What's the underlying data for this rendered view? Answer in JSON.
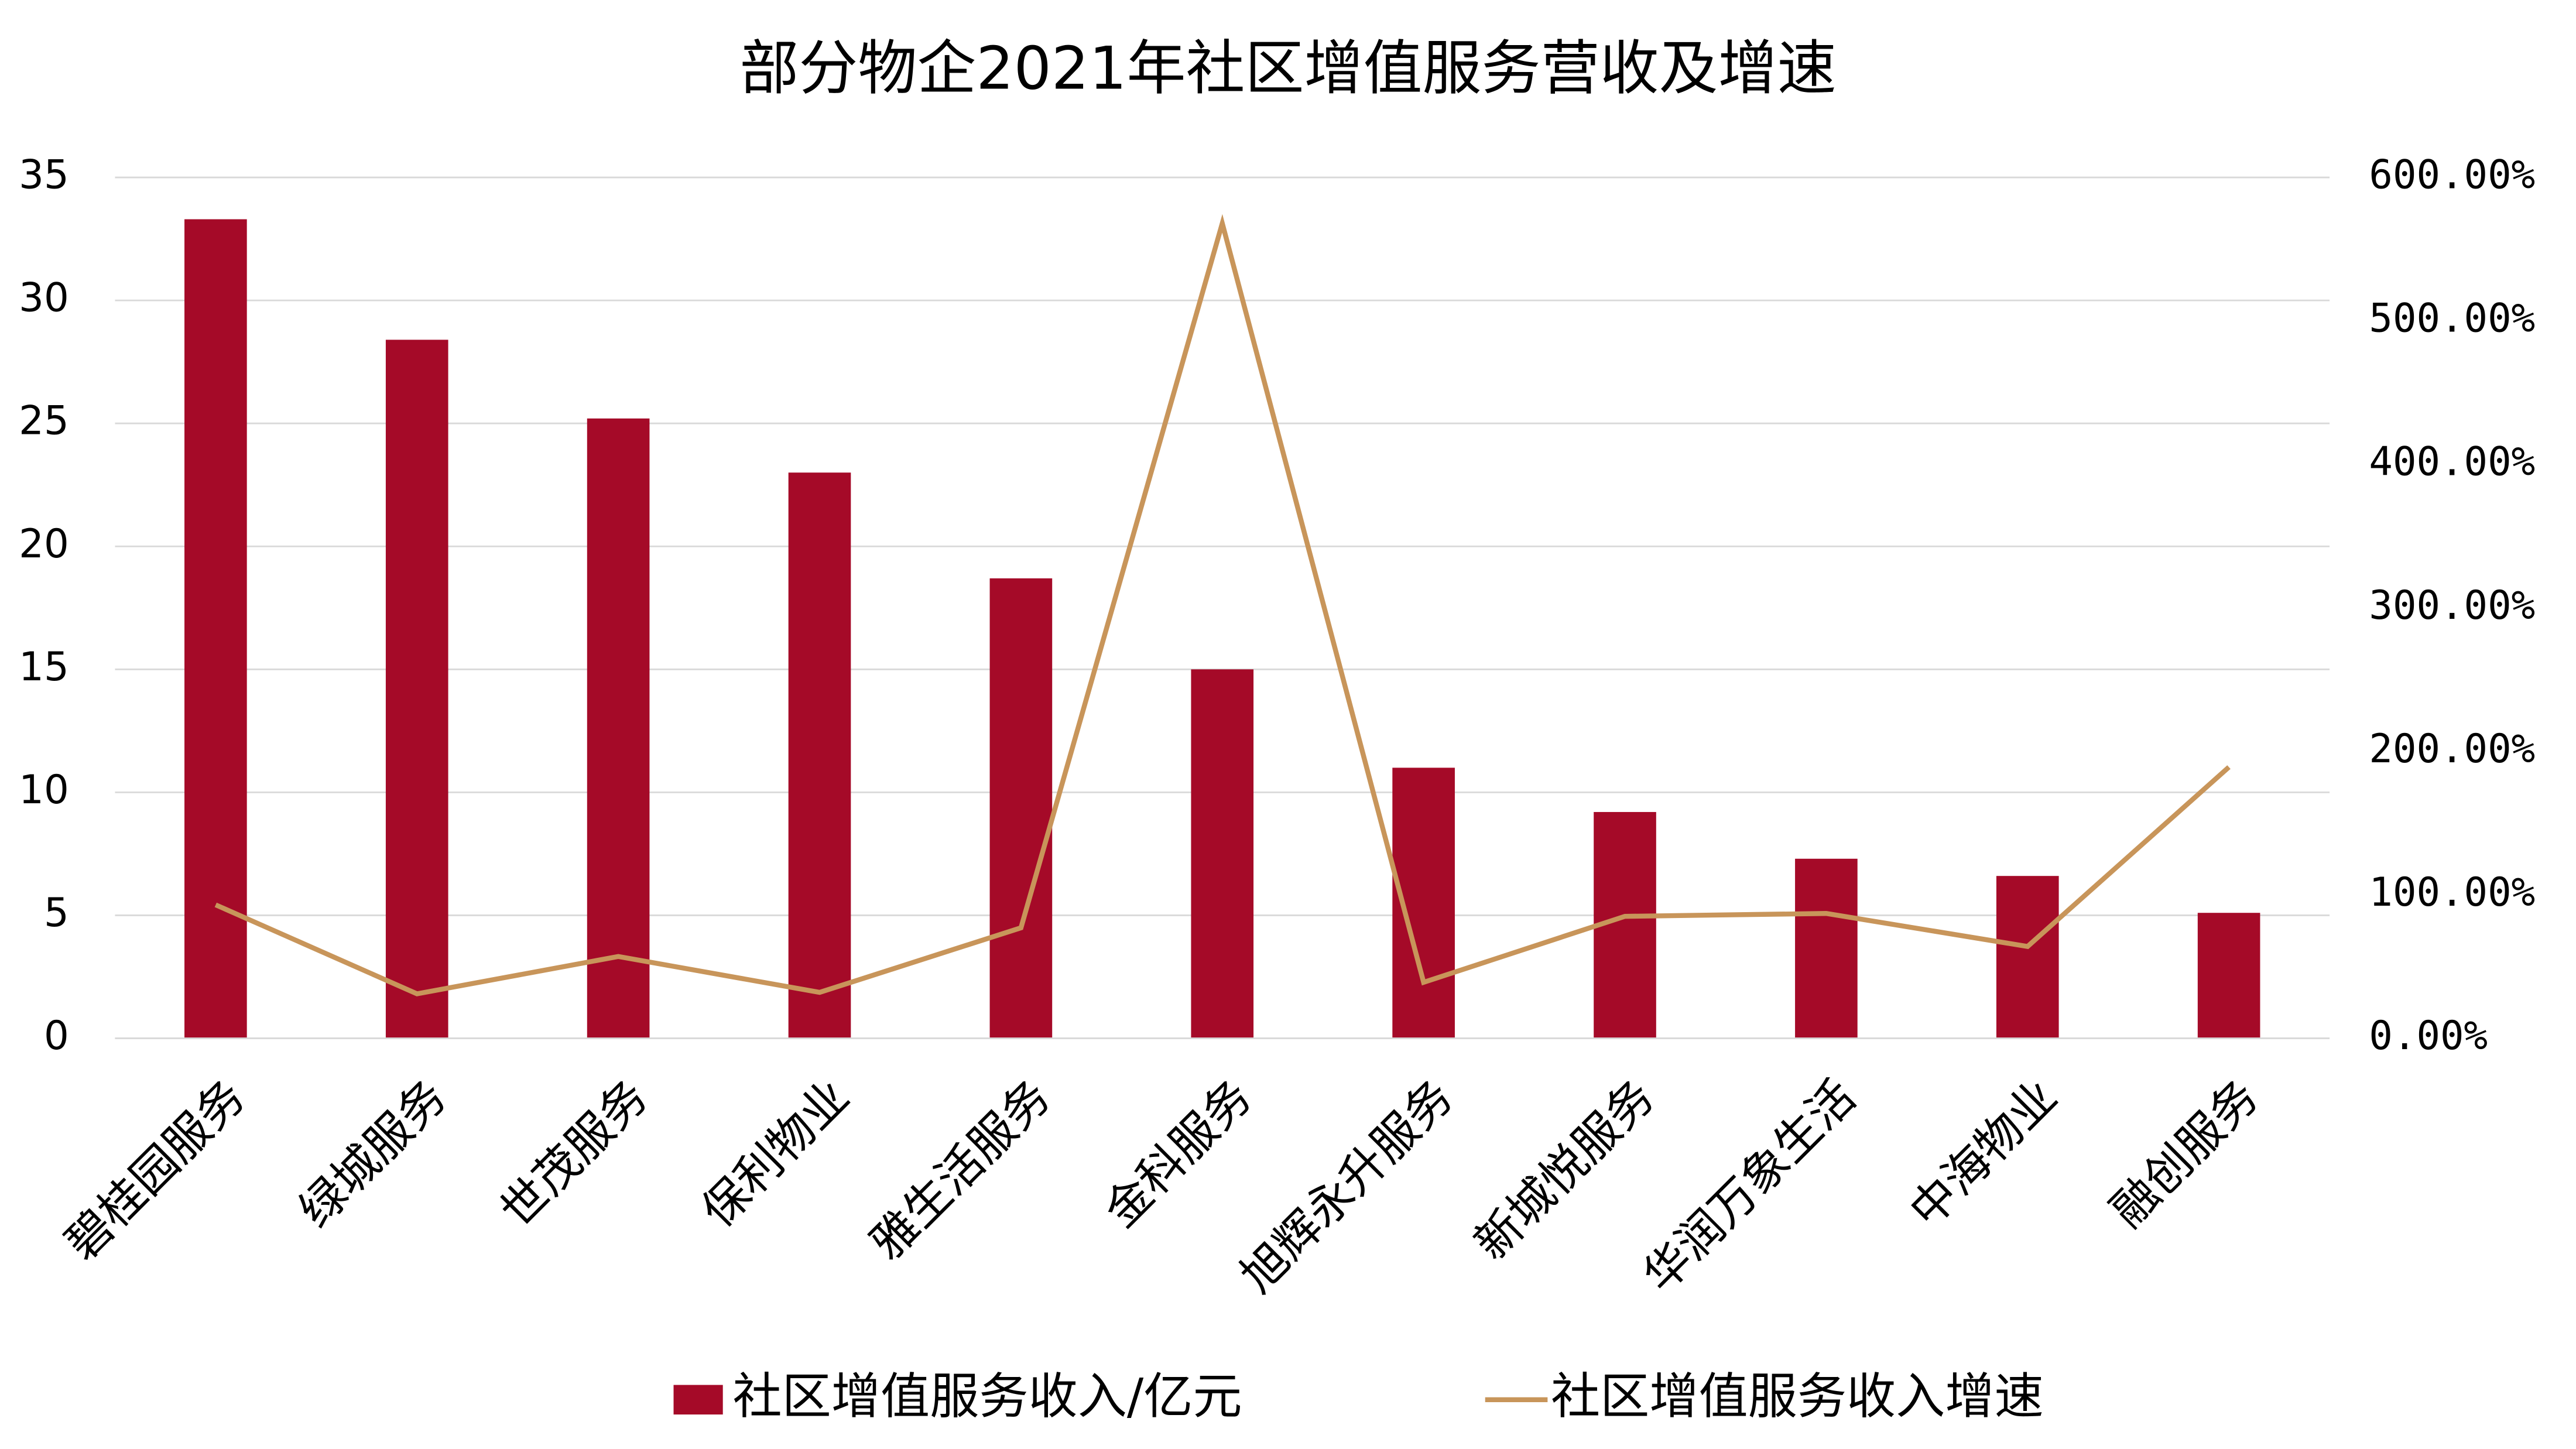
{
  "chart_data": {
    "type": "bar-line",
    "title": "部分物企2021年社区增值服务营收及增速",
    "categories": [
      "碧桂园服务",
      "绿城服务",
      "世茂服务",
      "保利物业",
      "雅生活服务",
      "金科服务",
      "旭辉永升服务",
      "新城悦服务",
      "华润万象生活",
      "中海物业",
      "融创服务"
    ],
    "series": [
      {
        "name": "社区增值服务收入/亿元",
        "type": "bar",
        "color": "#a50a28",
        "values": [
          33.3,
          28.4,
          25.2,
          23.0,
          18.7,
          15.0,
          11.0,
          9.2,
          7.3,
          6.6,
          5.1
        ]
      },
      {
        "name": "社区增值服务收入增速",
        "type": "line",
        "axis": "y2",
        "color": "#c8955a",
        "values": [
          93,
          31,
          57,
          32,
          77,
          568,
          39,
          85,
          87,
          64,
          189
        ]
      }
    ],
    "ylim": [
      0,
      35
    ],
    "yticks": [
      0,
      5,
      10,
      15,
      20,
      25,
      30,
      35
    ],
    "y2lim": [
      0,
      600
    ],
    "y2ticks": [
      {
        "value": 0,
        "label": "0.00%"
      },
      {
        "value": 100,
        "label": "100.00%"
      },
      {
        "value": 200,
        "label": "200.00%"
      },
      {
        "value": 300,
        "label": "300.00%"
      },
      {
        "value": 400,
        "label": "400.00%"
      },
      {
        "value": 500,
        "label": "500.00%"
      },
      {
        "value": 600,
        "label": "600.00%"
      }
    ],
    "grid": true,
    "legend": "bottom"
  }
}
